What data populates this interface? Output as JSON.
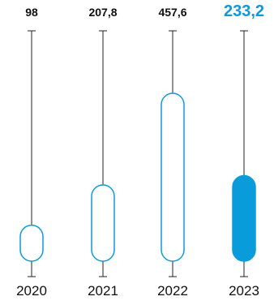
{
  "chart_data": {
    "type": "bar",
    "categories": [
      "2020",
      "2021",
      "2022",
      "2023"
    ],
    "values": [
      98,
      207.8,
      457.6,
      233.2
    ],
    "data_labels": [
      "98",
      "207,8",
      "457,6",
      "233,2"
    ],
    "highlight_index": 3,
    "ylim": [
      0,
      500
    ],
    "title": "",
    "xlabel": "",
    "ylabel": "",
    "grid": false
  },
  "colors": {
    "stroke": "#0a9bdb",
    "highlight_fill": "#0a9bdb",
    "highlight_text": "#0a9bdb",
    "line": "#222222",
    "text": "#111111"
  }
}
